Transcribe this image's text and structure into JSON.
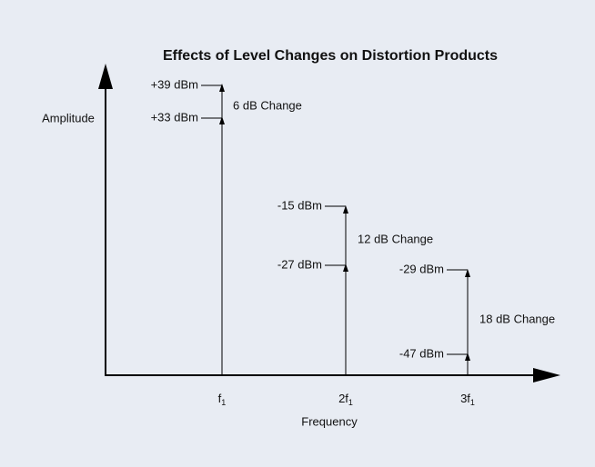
{
  "title": "Effects of Level Changes on Distortion Products",
  "y_axis_label": "Amplitude",
  "x_axis_label": "Frequency",
  "components": [
    {
      "label": {
        "main": "f",
        "sub": "1"
      },
      "upper": "+39 dBm",
      "lower": "+33 dBm",
      "change": "6 dB Change"
    },
    {
      "label": {
        "main": "2f",
        "sub": "1"
      },
      "upper": "-15 dBm",
      "lower": "-27 dBm",
      "change": "12 dB Change"
    },
    {
      "label": {
        "main": "3f",
        "sub": "1"
      },
      "upper": "-29 dBm",
      "lower": "-47 dBm",
      "change": "18 dB Change"
    }
  ]
}
